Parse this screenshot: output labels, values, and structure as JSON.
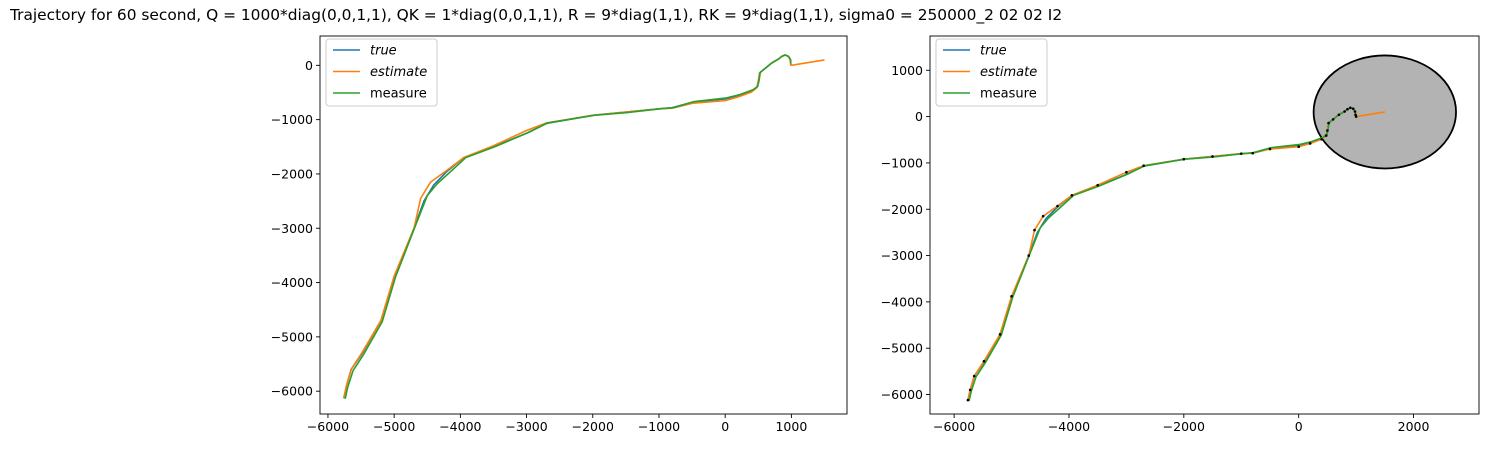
{
  "figure": {
    "title": "Trajectory for 60 second, Q = 1000*diag(0,0,1,1), QK = 1*diag(0,0,1,1), R = 9*diag(1,1), RK = 9*diag(1,1), sigma0 = 250000_2 02 02 I2"
  },
  "colors": {
    "true": "#1f77b4",
    "estimate": "#ff7f0e",
    "measure": "#2ca02c",
    "ellipse_fill": "#b3b3b3",
    "marker": "#000000"
  },
  "chart_data": [
    {
      "type": "line",
      "name": "left-plot",
      "xlim": [
        -6120,
        1840
      ],
      "ylim": [
        -6420,
        540
      ],
      "xticks": [
        -6000,
        -5000,
        -4000,
        -3000,
        -2000,
        -1000,
        0,
        1000
      ],
      "yticks": [
        0,
        -1000,
        -2000,
        -3000,
        -4000,
        -5000,
        -6000
      ],
      "xtick_labels": [
        "−6000",
        "−5000",
        "−4000",
        "−3000",
        "−2000",
        "−1000",
        "0",
        "1000"
      ],
      "ytick_labels": [
        "0",
        "−1000",
        "−2000",
        "−3000",
        "−4000",
        "−5000",
        "−6000"
      ],
      "legend": [
        "true",
        "estimate",
        "measure"
      ],
      "legend_location": "upper-left",
      "series": [
        {
          "name": "true",
          "x": [
            -5760,
            -5720,
            -5650,
            -5480,
            -5200,
            -5000,
            -4700,
            -4550,
            -4400,
            -4200,
            -3950,
            -3500,
            -3000,
            -2700,
            -2000,
            -1500,
            -1000,
            -800,
            -500,
            0,
            200,
            400,
            480,
            500,
            520,
            600,
            700,
            800,
            850,
            900,
            950,
            980,
            990,
            990
          ],
          "y": [
            -6130,
            -5900,
            -5600,
            -5300,
            -4700,
            -3900,
            -3000,
            -2500,
            -2200,
            -1950,
            -1700,
            -1500,
            -1250,
            -1070,
            -920,
            -860,
            -800,
            -780,
            -680,
            -620,
            -560,
            -470,
            -400,
            -300,
            -140,
            -60,
            40,
            110,
            160,
            190,
            170,
            110,
            40,
            0
          ]
        },
        {
          "name": "estimate",
          "x": [
            -5760,
            -5720,
            -5650,
            -5480,
            -5200,
            -5000,
            -4700,
            -4600,
            -4450,
            -4200,
            -3950,
            -3500,
            -3000,
            -2700,
            -2000,
            -1500,
            -1000,
            -800,
            -500,
            0,
            200,
            400,
            480,
            500,
            520,
            600,
            700,
            800,
            850,
            900,
            950,
            980,
            990,
            1000,
            1500
          ],
          "y": [
            -6120,
            -5900,
            -5600,
            -5280,
            -4700,
            -3880,
            -3000,
            -2450,
            -2150,
            -1930,
            -1700,
            -1480,
            -1200,
            -1060,
            -920,
            -860,
            -800,
            -790,
            -700,
            -650,
            -580,
            -490,
            -410,
            -300,
            -140,
            -60,
            40,
            110,
            160,
            190,
            170,
            110,
            40,
            0,
            100
          ]
        },
        {
          "name": "measure",
          "x": [
            -5740,
            -5700,
            -5620,
            -5460,
            -5180,
            -4980,
            -4700,
            -4500,
            -4350,
            -4150,
            -3920,
            -3480,
            -2960,
            -2680,
            -1980,
            -1480,
            -980,
            -780,
            -480,
            20,
            220,
            420,
            490,
            510,
            530,
            610,
            710,
            810,
            860,
            910,
            960,
            990,
            990
          ],
          "y": [
            -6140,
            -5920,
            -5620,
            -5320,
            -4720,
            -3900,
            -3020,
            -2400,
            -2180,
            -1960,
            -1700,
            -1500,
            -1230,
            -1060,
            -920,
            -870,
            -800,
            -780,
            -670,
            -600,
            -540,
            -450,
            -390,
            -290,
            -130,
            -50,
            50,
            120,
            170,
            190,
            160,
            100,
            30
          ]
        }
      ]
    },
    {
      "type": "line",
      "name": "right-plot",
      "xlim": [
        -6420,
        3140
      ],
      "ylim": [
        -6420,
        1740
      ],
      "xticks": [
        -6000,
        -4000,
        -2000,
        0,
        2000
      ],
      "yticks": [
        1000,
        0,
        -1000,
        -2000,
        -3000,
        -4000,
        -5000,
        -6000
      ],
      "xtick_labels": [
        "−6000",
        "−4000",
        "−2000",
        "0",
        "2000"
      ],
      "ytick_labels": [
        "1000",
        "0",
        "−1000",
        "−2000",
        "−3000",
        "−4000",
        "−5000",
        "−6000"
      ],
      "legend": [
        "true",
        "estimate",
        "measure"
      ],
      "legend_location": "upper-left",
      "ellipse": {
        "center": [
          1500,
          100
        ],
        "rx": 1240,
        "ry": 1220
      },
      "series": [
        {
          "name": "true",
          "x": [
            -5760,
            -5720,
            -5650,
            -5480,
            -5200,
            -5000,
            -4700,
            -4550,
            -4400,
            -4200,
            -3950,
            -3500,
            -3000,
            -2700,
            -2000,
            -1500,
            -1000,
            -800,
            -500,
            0,
            200,
            400,
            480,
            500,
            520,
            600,
            700,
            800,
            850,
            900,
            950,
            980,
            990,
            990
          ],
          "y": [
            -6130,
            -5900,
            -5600,
            -5300,
            -4700,
            -3900,
            -3000,
            -2500,
            -2200,
            -1950,
            -1700,
            -1500,
            -1250,
            -1070,
            -920,
            -860,
            -800,
            -780,
            -680,
            -620,
            -560,
            -470,
            -400,
            -300,
            -140,
            -60,
            40,
            110,
            160,
            190,
            170,
            110,
            40,
            0
          ]
        },
        {
          "name": "estimate",
          "x": [
            -5760,
            -5720,
            -5650,
            -5480,
            -5200,
            -5000,
            -4700,
            -4600,
            -4450,
            -4200,
            -3950,
            -3500,
            -3000,
            -2700,
            -2000,
            -1500,
            -1000,
            -800,
            -500,
            0,
            200,
            400,
            480,
            500,
            520,
            600,
            700,
            800,
            850,
            900,
            950,
            980,
            990,
            1000,
            1500
          ],
          "y": [
            -6120,
            -5900,
            -5600,
            -5280,
            -4700,
            -3880,
            -3000,
            -2450,
            -2150,
            -1930,
            -1700,
            -1480,
            -1200,
            -1060,
            -920,
            -860,
            -800,
            -790,
            -700,
            -650,
            -580,
            -490,
            -410,
            -300,
            -140,
            -60,
            40,
            110,
            160,
            190,
            170,
            110,
            40,
            0,
            100
          ]
        },
        {
          "name": "measure",
          "x": [
            -5740,
            -5700,
            -5620,
            -5460,
            -5180,
            -4980,
            -4700,
            -4500,
            -4350,
            -4150,
            -3920,
            -3480,
            -2960,
            -2680,
            -1980,
            -1480,
            -980,
            -780,
            -480,
            20,
            220,
            420,
            490,
            510,
            530,
            610,
            710,
            810,
            860,
            910,
            960,
            990,
            990
          ],
          "y": [
            -6140,
            -5920,
            -5620,
            -5320,
            -4720,
            -3900,
            -3020,
            -2400,
            -2180,
            -1960,
            -1700,
            -1500,
            -1230,
            -1060,
            -920,
            -870,
            -800,
            -780,
            -670,
            -600,
            -540,
            -450,
            -390,
            -290,
            -130,
            -50,
            50,
            120,
            170,
            190,
            160,
            100,
            30
          ]
        }
      ]
    }
  ]
}
